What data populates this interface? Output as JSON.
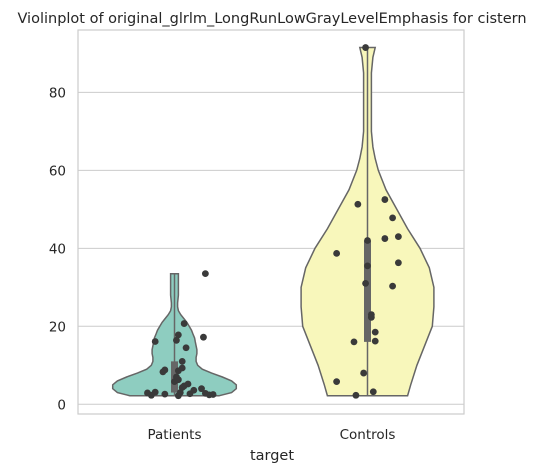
{
  "chart_data": {
    "type": "violin",
    "title": "Violinplot of original_glrlm_LongRunLowGrayLevelEmphasis for cistern",
    "xlabel": "target",
    "ylabel": "",
    "categories": [
      "Patients",
      "Controls"
    ],
    "ylim": [
      -2.5,
      96
    ],
    "yticks": [
      0,
      20,
      40,
      60,
      80
    ],
    "grid": true,
    "colors": {
      "Patients": "#8ecdc0",
      "Controls": "#f8f7bb",
      "outline": "#666666",
      "points": "#3a3a3a",
      "inner_box": "#666666"
    },
    "series": [
      {
        "category": "Patients",
        "range": [
          2.2,
          33.5
        ],
        "quartiles": [
          3.0,
          5.0,
          11.0
        ],
        "density": [
          [
            2.2,
            0.58
          ],
          [
            3.0,
            0.74
          ],
          [
            4.0,
            0.8
          ],
          [
            5.0,
            0.8
          ],
          [
            6.0,
            0.74
          ],
          [
            7.0,
            0.62
          ],
          [
            8.0,
            0.48
          ],
          [
            9.0,
            0.36
          ],
          [
            10.0,
            0.3
          ],
          [
            11.0,
            0.28
          ],
          [
            12.0,
            0.28
          ],
          [
            13.0,
            0.29
          ],
          [
            14.0,
            0.29
          ],
          [
            15.0,
            0.28
          ],
          [
            16.0,
            0.27
          ],
          [
            17.0,
            0.26
          ],
          [
            18.0,
            0.24
          ],
          [
            19.0,
            0.22
          ],
          [
            20.0,
            0.19
          ],
          [
            21.0,
            0.16
          ],
          [
            22.0,
            0.12
          ],
          [
            23.0,
            0.08
          ],
          [
            24.0,
            0.05
          ],
          [
            25.0,
            0.04
          ],
          [
            26.0,
            0.04
          ],
          [
            28.0,
            0.05
          ],
          [
            30.0,
            0.05
          ],
          [
            32.0,
            0.05
          ],
          [
            33.5,
            0.05
          ]
        ],
        "points": [
          [
            2.2,
            0.02
          ],
          [
            2.3,
            -0.12
          ],
          [
            2.4,
            0.18
          ],
          [
            2.5,
            0.2
          ],
          [
            2.6,
            -0.05
          ],
          [
            2.7,
            0.08
          ],
          [
            2.8,
            0.16
          ],
          [
            2.9,
            -0.14
          ],
          [
            3.0,
            0.03
          ],
          [
            3.1,
            -0.1
          ],
          [
            3.6,
            0.1
          ],
          [
            4.0,
            0.14
          ],
          [
            4.3,
            0.04
          ],
          [
            4.7,
            0.05
          ],
          [
            5.2,
            0.07
          ],
          [
            5.8,
            0.0
          ],
          [
            6.3,
            0.02
          ],
          [
            7.0,
            0.01
          ],
          [
            8.3,
            -0.06
          ],
          [
            8.6,
            0.02
          ],
          [
            8.8,
            -0.05
          ],
          [
            9.3,
            0.04
          ],
          [
            11.0,
            0.04
          ],
          [
            14.5,
            0.06
          ],
          [
            16.1,
            -0.1
          ],
          [
            16.4,
            0.01
          ],
          [
            17.2,
            0.15
          ],
          [
            17.8,
            0.02
          ],
          [
            20.7,
            0.05
          ],
          [
            33.5,
            0.16
          ]
        ]
      },
      {
        "category": "Controls",
        "range": [
          2.2,
          91.5
        ],
        "quartiles": [
          16.0,
          30.0,
          42.0
        ],
        "density": [
          [
            2.2,
            0.52
          ],
          [
            5.0,
            0.56
          ],
          [
            10.0,
            0.64
          ],
          [
            15.0,
            0.74
          ],
          [
            20.0,
            0.84
          ],
          [
            25.0,
            0.86
          ],
          [
            30.0,
            0.86
          ],
          [
            35.0,
            0.8
          ],
          [
            40.0,
            0.68
          ],
          [
            45.0,
            0.52
          ],
          [
            50.0,
            0.38
          ],
          [
            55.0,
            0.24
          ],
          [
            60.0,
            0.14
          ],
          [
            63.0,
            0.1
          ],
          [
            66.0,
            0.07
          ],
          [
            70.0,
            0.05
          ],
          [
            75.0,
            0.05
          ],
          [
            80.0,
            0.05
          ],
          [
            85.0,
            0.05
          ],
          [
            89.0,
            0.07
          ],
          [
            91.5,
            0.1
          ]
        ],
        "points": [
          [
            2.3,
            -0.06
          ],
          [
            3.2,
            0.03
          ],
          [
            5.8,
            -0.16
          ],
          [
            8.0,
            -0.02
          ],
          [
            16.0,
            -0.07
          ],
          [
            16.2,
            0.04
          ],
          [
            18.5,
            0.04
          ],
          [
            22.3,
            0.02
          ],
          [
            23.0,
            0.02
          ],
          [
            30.3,
            0.13
          ],
          [
            31.0,
            -0.01
          ],
          [
            35.5,
            0.0
          ],
          [
            36.3,
            0.16
          ],
          [
            38.7,
            -0.16
          ],
          [
            42.0,
            0.0
          ],
          [
            42.5,
            0.09
          ],
          [
            43.0,
            0.16
          ],
          [
            47.8,
            0.13
          ],
          [
            51.3,
            -0.05
          ],
          [
            52.5,
            0.09
          ],
          [
            91.5,
            -0.01
          ]
        ]
      }
    ]
  }
}
